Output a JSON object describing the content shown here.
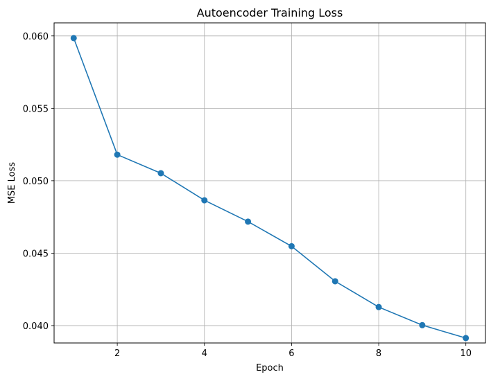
{
  "chart_data": {
    "type": "line",
    "title": "Autoencoder Training Loss",
    "xlabel": "Epoch",
    "ylabel": "MSE Loss",
    "x": [
      1,
      2,
      3,
      4,
      5,
      6,
      7,
      8,
      9,
      10
    ],
    "series": [
      {
        "values": [
          0.05985,
          0.0518,
          0.05052,
          0.04865,
          0.04718,
          0.04548,
          0.04306,
          0.04128,
          0.04003,
          0.03914
        ],
        "color": "#1f77b4",
        "marker": "circle"
      }
    ],
    "xlim": [
      0.55,
      10.45
    ],
    "ylim": [
      0.0388,
      0.0609
    ],
    "xticks": [
      2,
      4,
      6,
      8,
      10
    ],
    "yticks": [
      0.04,
      0.045,
      0.05,
      0.055,
      0.06
    ],
    "xtick_labels": [
      "2",
      "4",
      "6",
      "8",
      "10"
    ],
    "ytick_labels": [
      "0.040",
      "0.045",
      "0.050",
      "0.055",
      "0.060"
    ],
    "grid": true,
    "grid_color": "#b0b0b0"
  }
}
